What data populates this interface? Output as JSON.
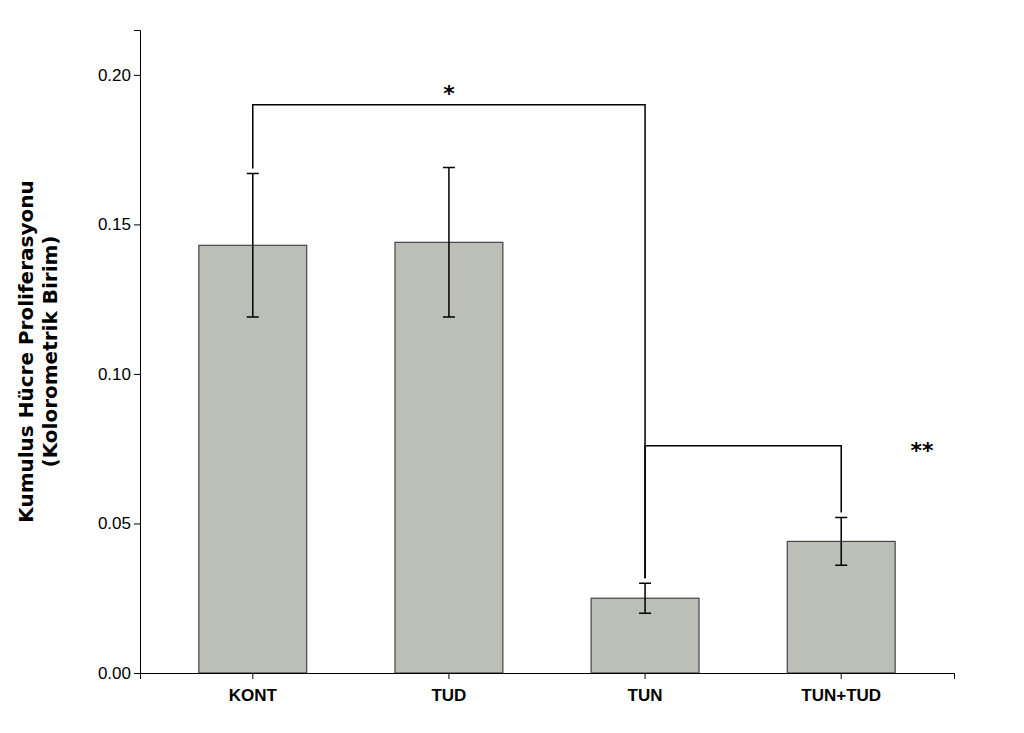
{
  "chart_data": {
    "type": "bar",
    "categories": [
      "KONT",
      "TUD",
      "TUN",
      "TUN+TUD"
    ],
    "values": [
      0.143,
      0.144,
      0.025,
      0.044
    ],
    "errors": [
      0.024,
      0.025,
      0.005,
      0.008
    ],
    "color": "#bbbfb8",
    "ylabel": "Kumulus Hücre Proliferasyonu\n(Kolorometrik Birim)",
    "ylim": [
      0.0,
      0.215
    ],
    "yticks": [
      {
        "value": 0.0,
        "label": "0.00"
      },
      0.05,
      {
        "value": 0.1,
        "label": "0.10"
      },
      0.15,
      {
        "value": 0.2,
        "label": "0.20"
      }
    ],
    "grid": false,
    "annotations": [
      {
        "text": "*",
        "from": "KONT",
        "to": "TUN",
        "y": 0.19
      },
      {
        "text": "**",
        "from": "TUN",
        "to": "TUN+TUD",
        "y": 0.076
      }
    ]
  }
}
